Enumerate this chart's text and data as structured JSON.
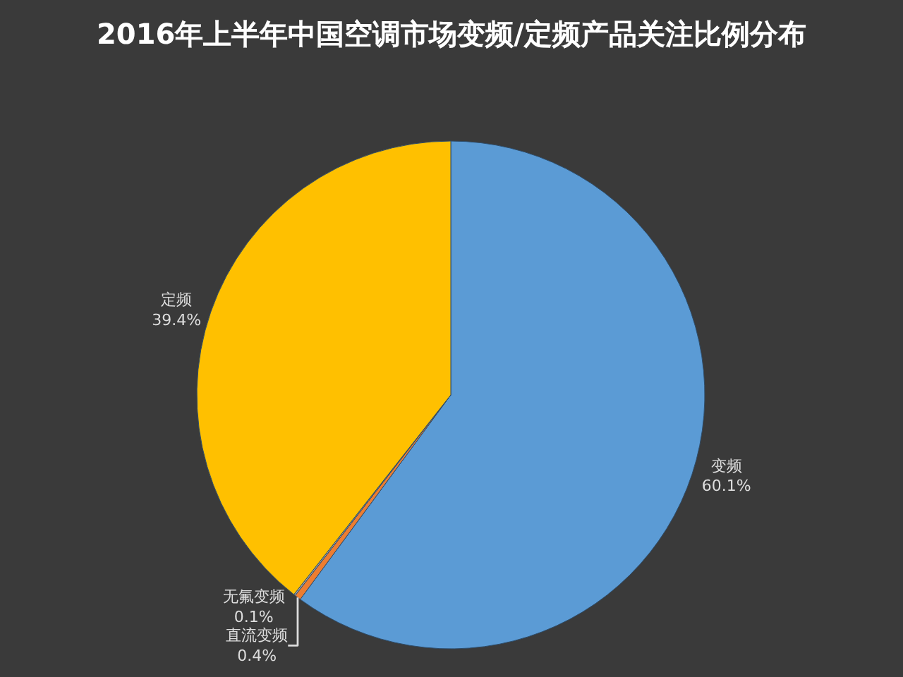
{
  "chart_data": {
    "type": "pie",
    "title": "2016年上半年中国空调市场变频/定频产品关注比例分布",
    "categories": [
      "变频",
      "直流变频",
      "无氟变频",
      "定频"
    ],
    "values": [
      60.1,
      0.4,
      0.1,
      39.4
    ],
    "value_labels": [
      "60.1%",
      "0.4%",
      "0.1%",
      "39.4%"
    ],
    "colors": [
      "#5b9bd5",
      "#ed7d31",
      "#a5a5a5",
      "#ffc000"
    ],
    "legend": false
  }
}
